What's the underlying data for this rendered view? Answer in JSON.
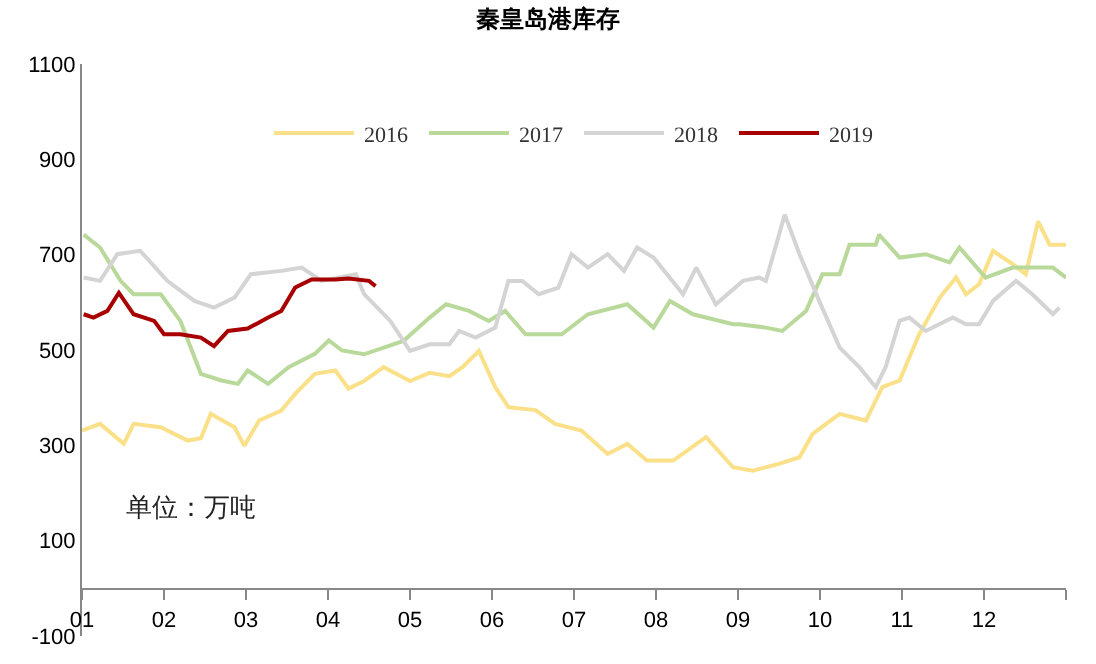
{
  "chart_data": {
    "type": "line",
    "title": "秦皇岛港库存",
    "annotations": [
      "单位：万吨"
    ],
    "xlim": [
      1,
      13
    ],
    "xticks": [
      {
        "value": 1,
        "label": "01"
      },
      {
        "value": 2,
        "label": "02"
      },
      {
        "value": 3,
        "label": "03"
      },
      {
        "value": 4,
        "label": "04"
      },
      {
        "value": 5,
        "label": "05"
      },
      {
        "value": 6,
        "label": "06"
      },
      {
        "value": 7,
        "label": "07"
      },
      {
        "value": 8,
        "label": "08"
      },
      {
        "value": 9,
        "label": "09"
      },
      {
        "value": 10,
        "label": "10"
      },
      {
        "value": 11,
        "label": "11"
      },
      {
        "value": 12,
        "label": "12"
      },
      {
        "value": 13,
        "label": null
      }
    ],
    "ylim": [
      -100,
      1100
    ],
    "yticks": [
      -100,
      100,
      300,
      500,
      700,
      900,
      1100
    ],
    "grid": false,
    "legend": "top",
    "marker": "none",
    "line_style": "solid",
    "series": [
      {
        "name": "2016",
        "color": "#fbe08a",
        "x": [
          1.0,
          1.22,
          1.51,
          1.63,
          1.96,
          2.29,
          2.45,
          2.57,
          2.86,
          2.98,
          3.16,
          3.43,
          3.6,
          3.84,
          4.09,
          4.25,
          4.44,
          4.68,
          5.0,
          5.24,
          5.48,
          5.64,
          5.84,
          6.04,
          6.2,
          6.53,
          6.77,
          7.09,
          7.41,
          7.65,
          7.89,
          8.21,
          8.61,
          8.94,
          9.18,
          9.5,
          9.75,
          9.91,
          10.24,
          10.56,
          10.76,
          10.97,
          11.21,
          11.46,
          11.66,
          11.78,
          11.94,
          12.11,
          12.35,
          12.51,
          12.66,
          12.8,
          13.0
        ],
        "values": [
          331,
          345,
          303,
          345,
          338,
          310,
          315,
          366,
          338,
          299,
          352,
          373,
          408,
          450,
          457,
          419,
          435,
          464,
          435,
          452,
          445,
          464,
          498,
          422,
          380,
          374,
          345,
          331,
          282,
          303,
          268,
          268,
          317,
          254,
          247,
          261,
          275,
          324,
          366,
          352,
          422,
          436,
          533,
          610,
          652,
          617,
          638,
          708,
          680,
          659,
          770,
          721,
          721
        ]
      },
      {
        "name": "2017",
        "color": "#b9d99b",
        "x": [
          1.02,
          1.22,
          1.47,
          1.63,
          1.96,
          2.2,
          2.45,
          2.7,
          2.9,
          3.02,
          3.27,
          3.52,
          3.84,
          4.01,
          4.17,
          4.44,
          4.92,
          5.24,
          5.44,
          5.72,
          5.96,
          6.16,
          6.41,
          6.85,
          7.17,
          7.65,
          7.97,
          8.17,
          8.45,
          8.94,
          9.02,
          9.34,
          9.54,
          9.83,
          10.03,
          10.24,
          10.36,
          10.68,
          10.72,
          10.97,
          11.29,
          11.58,
          11.7,
          12.02,
          12.35,
          12.84,
          13.0
        ],
        "values": [
          742,
          715,
          645,
          617,
          617,
          561,
          450,
          436,
          429,
          457,
          429,
          464,
          492,
          520,
          499,
          491,
          519,
          568,
          596,
          582,
          561,
          582,
          533,
          533,
          575,
          596,
          547,
          603,
          575,
          554,
          554,
          547,
          540,
          582,
          659,
          659,
          721,
          721,
          742,
          694,
          701,
          684,
          715,
          652,
          673,
          673,
          652
        ]
      },
      {
        "name": "2018",
        "color": "#d4d4d4",
        "x": [
          1.02,
          1.22,
          1.43,
          1.71,
          2.04,
          2.37,
          2.61,
          2.86,
          3.06,
          3.43,
          3.68,
          3.92,
          4.34,
          4.44,
          4.76,
          5.0,
          5.24,
          5.48,
          5.6,
          5.8,
          6.04,
          6.2,
          6.37,
          6.57,
          6.81,
          6.97,
          7.17,
          7.41,
          7.61,
          7.77,
          7.97,
          8.33,
          8.49,
          8.73,
          9.06,
          9.26,
          9.34,
          9.57,
          9.75,
          9.99,
          10.24,
          10.48,
          10.68,
          10.8,
          10.97,
          11.09,
          11.29,
          11.62,
          11.78,
          11.94,
          12.11,
          12.39,
          12.59,
          12.84,
          12.92
        ],
        "values": [
          652,
          645,
          701,
          708,
          645,
          603,
          589,
          610,
          659,
          666,
          673,
          645,
          659,
          617,
          561,
          498,
          512,
          512,
          540,
          526,
          547,
          645,
          645,
          617,
          631,
          701,
          673,
          701,
          666,
          715,
          694,
          617,
          673,
          596,
          645,
          652,
          645,
          784,
          701,
          603,
          505,
          464,
          422,
          464,
          561,
          568,
          540,
          568,
          554,
          554,
          603,
          645,
          617,
          575,
          589
        ]
      },
      {
        "name": "2019",
        "color": "#a80000",
        "x": [
          1.02,
          1.14,
          1.31,
          1.45,
          1.63,
          1.88,
          2.0,
          2.2,
          2.45,
          2.61,
          2.78,
          3.02,
          3.27,
          3.43,
          3.6,
          3.8,
          4.09,
          4.25,
          4.5,
          4.58
        ],
        "values": [
          575,
          568,
          582,
          620,
          575,
          561,
          533,
          533,
          526,
          508,
          540,
          545,
          568,
          582,
          631,
          648,
          648,
          650,
          645,
          634
        ]
      }
    ]
  }
}
